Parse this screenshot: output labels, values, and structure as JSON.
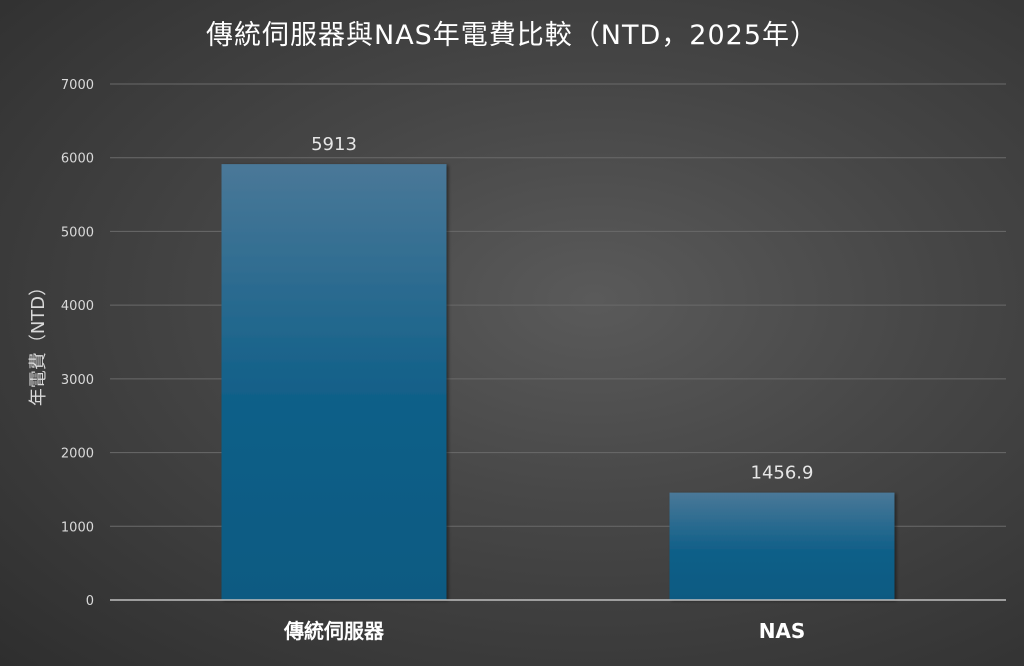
{
  "chart_data": {
    "type": "bar",
    "title": "傳統伺服器與NAS年電費比較（NTD，2025年）",
    "xlabel": "",
    "ylabel": "年電費（NTD）",
    "categories": [
      "傳統伺服器",
      "NAS"
    ],
    "values": [
      5913,
      1456.9
    ],
    "data_labels": [
      "5913",
      "1456.9"
    ],
    "ylim": [
      0,
      7000
    ],
    "yticks": [
      0,
      1000,
      2000,
      3000,
      4000,
      5000,
      6000,
      7000
    ],
    "grid": true,
    "legend": "none",
    "colors": {
      "bar_top": "#4a7898",
      "bar_bottom": "#0c5a82",
      "text": "#ffffff",
      "tick_text": "#d9d9d9",
      "grid": "#6a6a6a",
      "axis": "#bfbfbf"
    }
  }
}
